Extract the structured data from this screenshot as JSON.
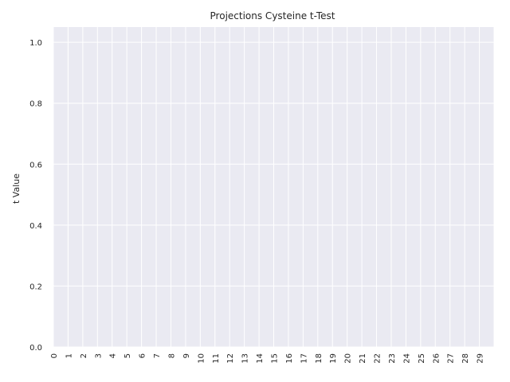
{
  "chart_data": {
    "type": "bar",
    "title": "Projections Cysteine t-Test",
    "xlabel": "",
    "ylabel": "t Value",
    "categories": [
      "0",
      "1",
      "2",
      "3",
      "4",
      "5",
      "6",
      "7",
      "8",
      "9",
      "10",
      "11",
      "12",
      "13",
      "14",
      "15",
      "16",
      "17",
      "18",
      "19",
      "20",
      "21",
      "22",
      "23",
      "24",
      "25",
      "26",
      "27",
      "28",
      "29"
    ],
    "values": [
      0,
      0,
      0,
      0,
      0,
      0,
      0,
      0,
      0,
      0,
      0,
      0,
      0,
      0,
      0,
      0,
      0,
      0,
      0,
      0,
      0,
      0,
      0,
      0,
      0,
      0,
      0,
      0,
      0,
      0
    ],
    "ylim": [
      0,
      1.05
    ],
    "yticks": [
      "0.0",
      "0.2",
      "0.4",
      "0.6",
      "0.8",
      "1.0"
    ],
    "grid": true,
    "colors": {
      "background": "#eaeaf2",
      "grid": "#ffffff",
      "bar": "#4c72b0",
      "text": "#262626"
    }
  }
}
